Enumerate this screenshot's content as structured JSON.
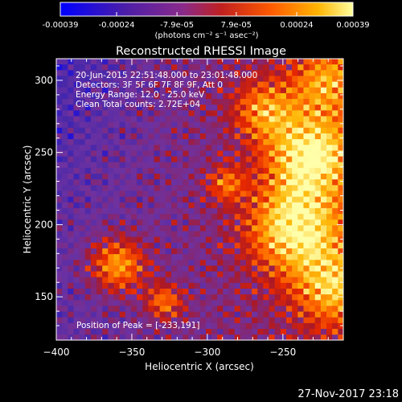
{
  "chart_data": {
    "type": "heatmap",
    "title": "Reconstructed RHESSI Image",
    "xlabel": "Heliocentric X (arcsec)",
    "ylabel": "Heliocentric Y (arcsec)",
    "xlim": [
      -400,
      -210
    ],
    "ylim": [
      120,
      315
    ],
    "x_ticks": [
      -400,
      -350,
      -300,
      -250
    ],
    "y_ticks": [
      150,
      200,
      250,
      300
    ],
    "colorbar": {
      "range": [
        -0.00039,
        0.00039
      ],
      "ticks": [
        -0.00039,
        -0.00024,
        -7.9e-05,
        7.9e-05,
        0.00024,
        0.00039
      ],
      "tick_labels": [
        "-0.00039",
        "-0.00024",
        "-7.9e-05",
        "7.9e-05",
        "0.00024",
        "0.00039"
      ],
      "unit_label": "(photons cm⁻² s⁻¹ asec⁻²)"
    },
    "annotations": [
      "20-Jun-2015 22:51:48.000 to 23:01:48.000",
      "Detectors: 3F 5F 6F 7F 8F 9F, Att 0",
      "Energy Range: 12.0 - 25.0 keV",
      "Clean     Total counts: 2.72E+04"
    ],
    "peak_label": "Position of Peak = [-233,191]",
    "peak": [
      -233,
      191
    ]
  },
  "footer_date": "27-Nov-2017 23:18"
}
